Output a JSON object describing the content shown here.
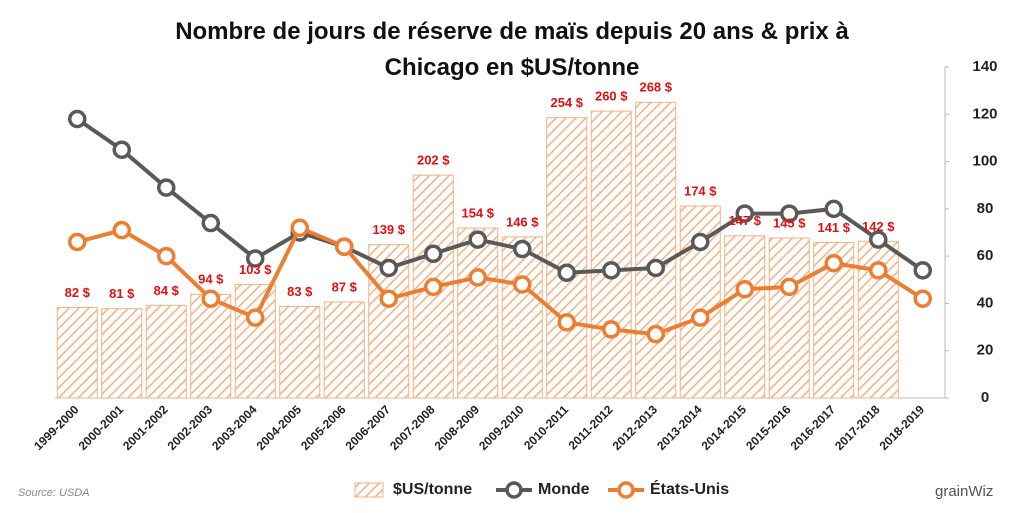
{
  "chart_data": {
    "type": "bar-line",
    "title": "Nombre de jours de réserve de maïs depuis 20 ans & prix à Chicago en $US/tonne",
    "categories": [
      "1999-2000",
      "2000-2001",
      "2001-2002",
      "2002-2003",
      "2003-2004",
      "2004-2005",
      "2005-2006",
      "2006-2007",
      "2007-2008",
      "2008-2009",
      "2009-2010",
      "2010-2011",
      "2011-2012",
      "2012-2013",
      "2013-2014",
      "2014-2015",
      "2015-2016",
      "2016-2017",
      "2017-2018",
      "2018-2019"
    ],
    "series": [
      {
        "name": "$US/tonne",
        "type": "bar",
        "color": "#f4b183",
        "values": [
          82,
          81,
          84,
          94,
          103,
          83,
          87,
          139,
          202,
          154,
          146,
          254,
          260,
          268,
          174,
          147,
          145,
          141,
          142,
          null
        ],
        "value_labels": [
          "82 $",
          "81 $",
          "84 $",
          "94 $",
          "103 $",
          "83 $",
          "87 $",
          "139 $",
          "202 $",
          "154 $",
          "146 $",
          "254 $",
          "260 $",
          "268 $",
          "174 $",
          "147 $",
          "145 $",
          "141 $",
          "142 $",
          null
        ]
      },
      {
        "name": "Monde",
        "type": "line",
        "axis": "y2",
        "color": "#595959",
        "values": [
          118,
          105,
          89,
          74,
          59,
          70,
          64,
          55,
          61,
          67,
          63,
          53,
          54,
          55,
          66,
          78,
          78,
          80,
          67,
          54
        ]
      },
      {
        "name": "États-Unis",
        "type": "line",
        "axis": "y2",
        "color": "#ed7d31",
        "values": [
          66,
          71,
          60,
          42,
          34,
          72,
          64,
          42,
          47,
          51,
          48,
          32,
          29,
          27,
          34,
          46,
          47,
          57,
          54,
          42
        ]
      }
    ],
    "ylim": [
      0,
      300
    ],
    "y2lim": [
      0,
      140
    ],
    "y2ticks": [
      0,
      20,
      40,
      60,
      80,
      100,
      120,
      140
    ],
    "legend": "bottom",
    "source": "Source:  USDA",
    "logo": "grainWiz"
  }
}
